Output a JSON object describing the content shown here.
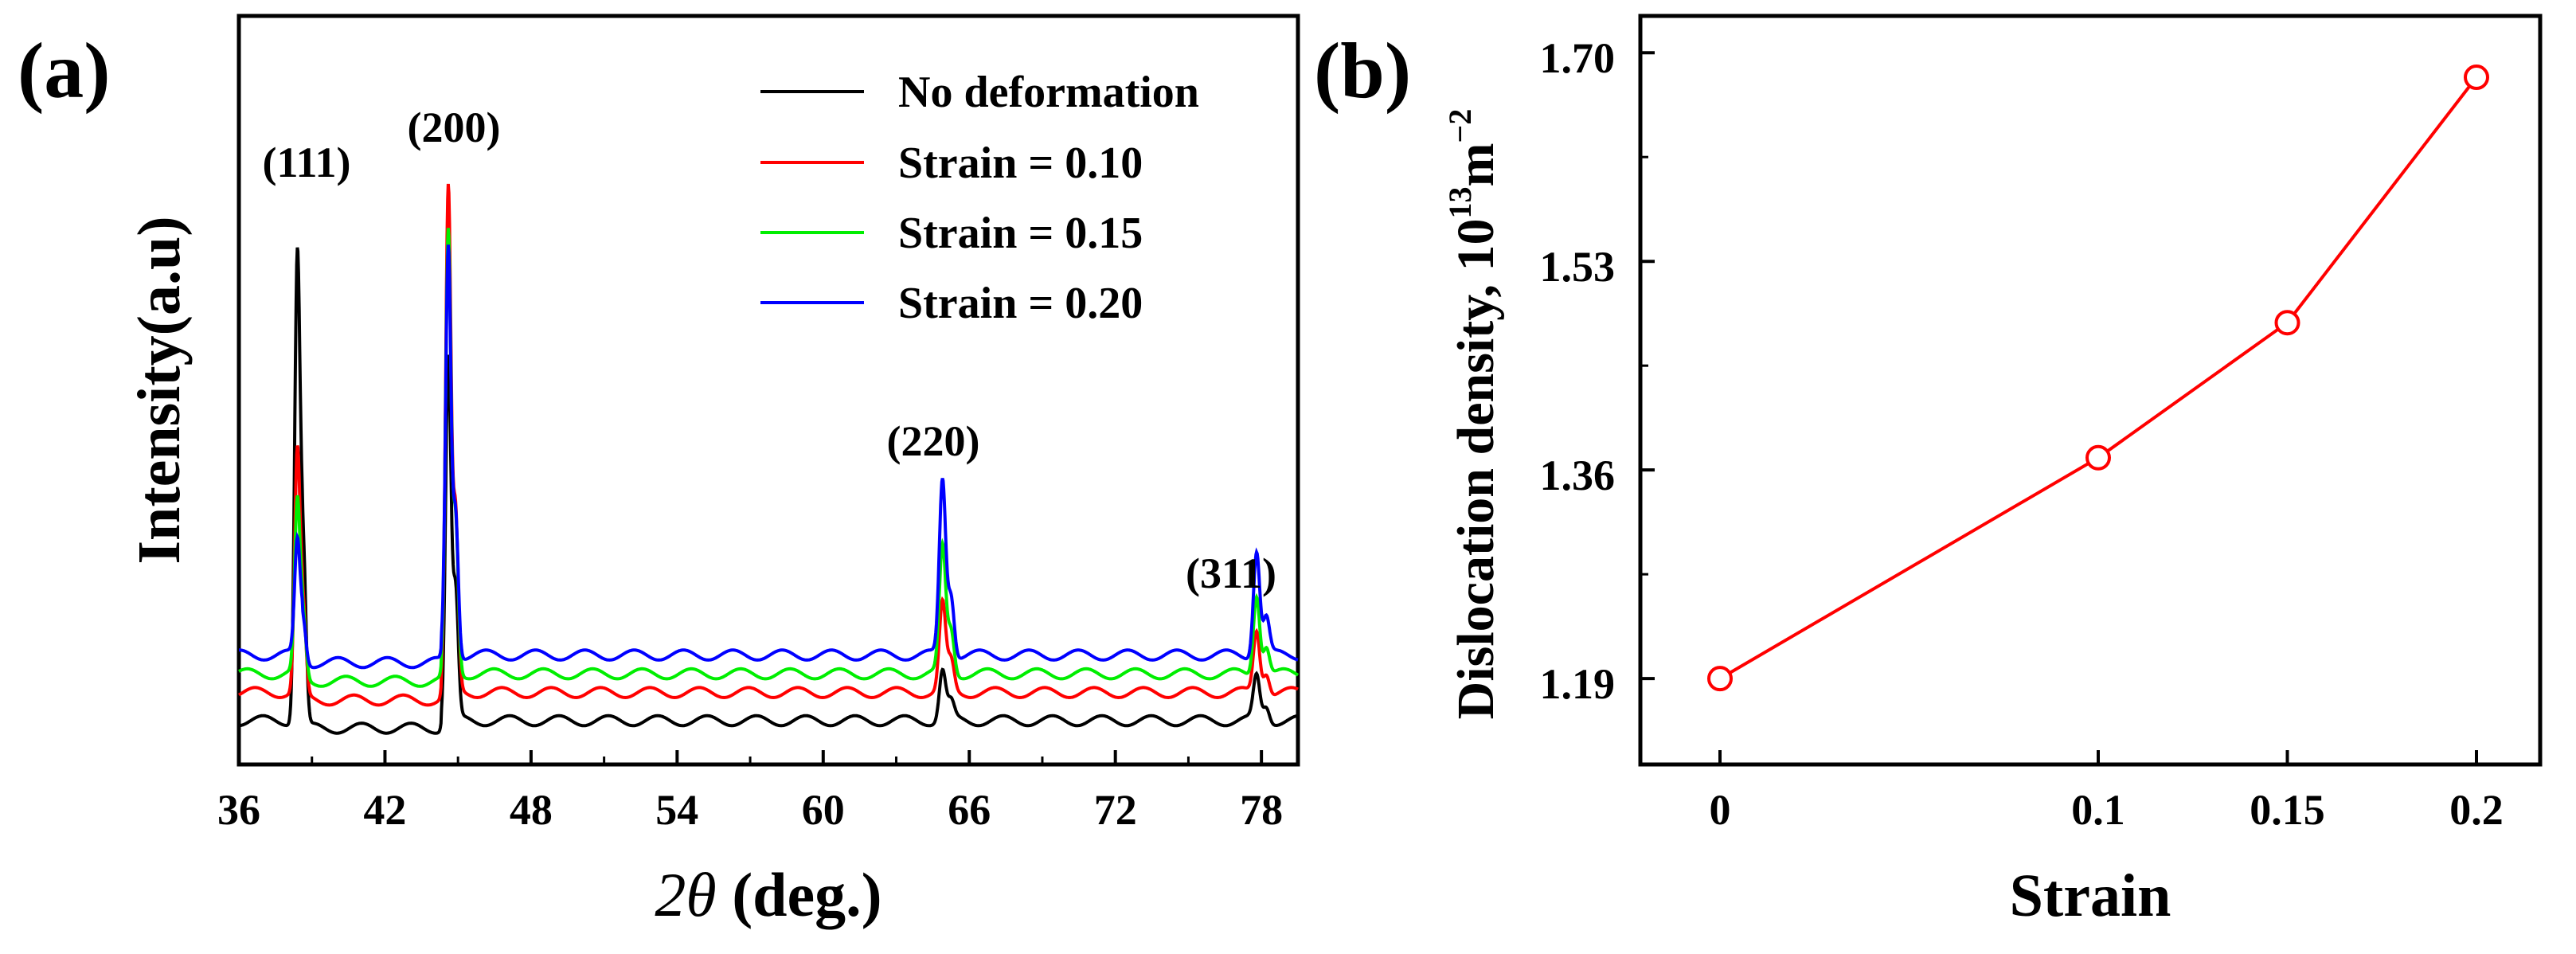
{
  "chart_data": [
    {
      "type": "line",
      "panel_label": "(a)",
      "title": "",
      "xlabel": {
        "symbol": "2θ",
        "unit": "(deg.)"
      },
      "ylabel": "Intensity(a.u)",
      "xlim": [
        36,
        79.5
      ],
      "xticks": [
        "36",
        "42",
        "48",
        "54",
        "60",
        "66",
        "72",
        "78"
      ],
      "yticks_shown": false,
      "legend": {
        "position": "top-right",
        "entries": [
          {
            "label": "No deformation",
            "color": "#000000"
          },
          {
            "label": "Strain = 0.10",
            "color": "#ff0000"
          },
          {
            "label": "Strain = 0.15",
            "color": "#00ee00"
          },
          {
            "label": "Strain = 0.20",
            "color": "#0000ff"
          }
        ]
      },
      "peaks": [
        {
          "label": "(111)",
          "two_theta": 38.4
        },
        {
          "label": "(200)",
          "two_theta": 44.6
        },
        {
          "label": "(220)",
          "two_theta": 64.9
        },
        {
          "label": "(311)",
          "two_theta": 77.8
        }
      ],
      "series": [
        {
          "name": "No deformation",
          "color": "#000000",
          "baseline": 0.0,
          "peak_heights": [
            0.74,
            0.58,
            0.08,
            0.07
          ]
        },
        {
          "name": "Strain = 0.10",
          "color": "#ff0000",
          "baseline": 0.045,
          "peak_heights": [
            0.38,
            0.8,
            0.14,
            0.1
          ]
        },
        {
          "name": "Strain = 0.15",
          "color": "#00ee00",
          "baseline": 0.075,
          "peak_heights": [
            0.27,
            0.7,
            0.2,
            0.13
          ]
        },
        {
          "name": "Strain = 0.20",
          "color": "#0000ff",
          "baseline": 0.105,
          "peak_heights": [
            0.18,
            0.65,
            0.28,
            0.17
          ]
        }
      ]
    },
    {
      "type": "line",
      "panel_label": "(b)",
      "title": "",
      "xlabel": "Strain",
      "ylabel": {
        "text": "Dislocation density, 10",
        "exp1": "13",
        "unit": "m",
        "exp2": "−2"
      },
      "x": [
        0,
        0.1,
        0.15,
        0.2
      ],
      "x_tick_labels": [
        "0",
        "0.1",
        "0.15",
        "0.2"
      ],
      "y": [
        1.19,
        1.37,
        1.48,
        1.68
      ],
      "ylim": [
        1.12,
        1.73
      ],
      "yticks": [
        "1.19",
        "1.36",
        "1.53",
        "1.70"
      ],
      "color": "#ff0000",
      "marker": "open-circle"
    }
  ]
}
